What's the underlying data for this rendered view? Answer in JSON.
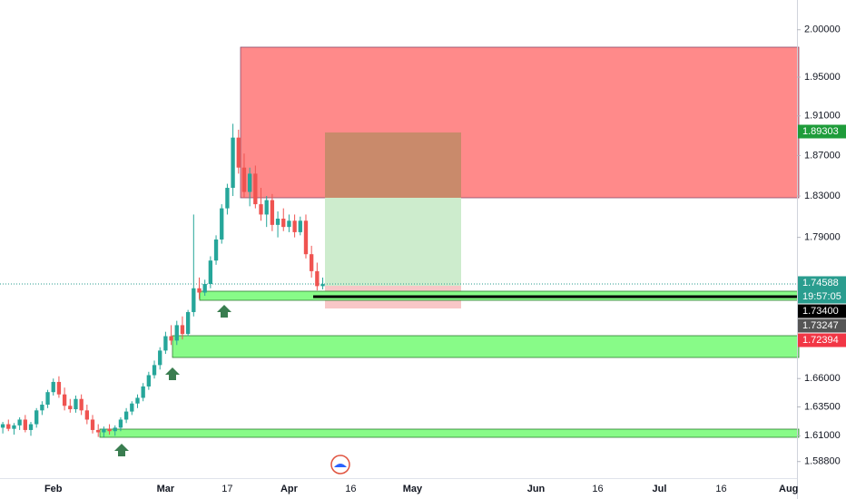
{
  "chart_data": {
    "type": "candlestick",
    "log_scale": true,
    "ylim": [
      1.574,
      2.032
    ],
    "yticks": [
      {
        "value": 2.0,
        "label": "2.00000"
      },
      {
        "value": 1.95,
        "label": "1.95000"
      },
      {
        "value": 1.91,
        "label": "1.91000"
      },
      {
        "value": 1.87,
        "label": "1.87000"
      },
      {
        "value": 1.83,
        "label": "1.83000"
      },
      {
        "value": 1.79,
        "label": "1.79000"
      },
      {
        "value": 1.66,
        "label": "1.66000"
      },
      {
        "value": 1.635,
        "label": "1.63500"
      },
      {
        "value": 1.61,
        "label": "1.61000"
      },
      {
        "value": 1.588,
        "label": "1.58800"
      }
    ],
    "up_color": "#26a69a",
    "down_color": "#ef5350",
    "categories": [
      null,
      null,
      null,
      null,
      null,
      null,
      null,
      null,
      null,
      "Feb",
      null,
      null,
      null,
      null,
      null,
      null,
      null,
      null,
      null,
      null,
      null,
      null,
      null,
      null,
      null,
      null,
      null,
      null,
      null,
      "Mar",
      null,
      null,
      null,
      null,
      null,
      null,
      null,
      null,
      null,
      null,
      "17",
      null,
      null,
      null,
      null,
      null,
      null,
      null,
      null,
      null,
      null,
      "Apr",
      null,
      null,
      null,
      null,
      null,
      null,
      null,
      null,
      null,
      null,
      "16",
      null,
      null,
      null,
      null,
      null,
      null,
      null,
      null,
      null,
      null,
      "May",
      null,
      null,
      null,
      null,
      null,
      null,
      null,
      null,
      null,
      null,
      null,
      null,
      null,
      null,
      null,
      null,
      null,
      null,
      null,
      null,
      null,
      "Jun",
      null,
      null,
      null,
      null,
      null,
      null,
      null,
      null,
      null,
      null,
      "16",
      null,
      null,
      null,
      null,
      null,
      null,
      null,
      null,
      null,
      null,
      "Jul",
      null,
      null,
      null,
      null,
      null,
      null,
      null,
      null,
      null,
      null,
      "16",
      null,
      null,
      null,
      null,
      null,
      null,
      null,
      null,
      null,
      null,
      null,
      "Aug",
      null
    ],
    "open": [
      1.617,
      1.62,
      1.616,
      1.619,
      1.624,
      1.615,
      1.62,
      1.632,
      1.637,
      1.648,
      1.657,
      1.646,
      1.636,
      1.633,
      1.642,
      1.632,
      1.624,
      1.615,
      1.613,
      1.616,
      1.614,
      1.617,
      1.624,
      1.631,
      1.638,
      1.643,
      1.653,
      1.663,
      1.672,
      1.685,
      1.698,
      1.694,
      1.708,
      1.7,
      1.72,
      1.742,
      1.738,
      1.746,
      1.768,
      1.788,
      1.818,
      1.838,
      1.888,
      1.858,
      1.834,
      1.852,
      1.822,
      1.812,
      1.826,
      1.802,
      1.808,
      1.8,
      1.806,
      1.795,
      1.806,
      1.774,
      1.758,
      1.744,
      null,
      null,
      null,
      null,
      null,
      null,
      null,
      null,
      null,
      null,
      null,
      null,
      null,
      null,
      null,
      null,
      null,
      null,
      null,
      null,
      null,
      null,
      null,
      null,
      null,
      null,
      null,
      null,
      null,
      null,
      null,
      null,
      null,
      null,
      null,
      null,
      null,
      null,
      null,
      null,
      null,
      null,
      null,
      null,
      null,
      null,
      null,
      null,
      null,
      null,
      null,
      null,
      null,
      null,
      null,
      null,
      null,
      null,
      null,
      null,
      null,
      null,
      null,
      null,
      null,
      null,
      null,
      null,
      null,
      null,
      null,
      null,
      null,
      null,
      null,
      null,
      null,
      null,
      null,
      null,
      null,
      null,
      null,
      null
    ],
    "high": [
      1.622,
      1.624,
      1.621,
      1.626,
      1.628,
      1.622,
      1.634,
      1.64,
      1.65,
      1.66,
      1.662,
      1.652,
      1.642,
      1.645,
      1.646,
      1.637,
      1.628,
      1.62,
      1.618,
      1.62,
      1.619,
      1.626,
      1.634,
      1.64,
      1.646,
      1.656,
      1.666,
      1.676,
      1.688,
      1.702,
      1.708,
      1.712,
      1.716,
      1.722,
      1.812,
      1.752,
      1.75,
      1.772,
      1.792,
      1.822,
      1.842,
      1.902,
      1.896,
      1.872,
      1.858,
      1.86,
      1.838,
      1.83,
      1.832,
      1.815,
      1.818,
      1.812,
      1.812,
      1.81,
      1.812,
      1.782,
      1.766,
      1.752,
      null,
      null,
      null,
      null,
      null,
      null,
      null,
      null,
      null,
      null,
      null,
      null,
      null,
      null,
      null,
      null,
      null,
      null,
      null,
      null,
      null,
      null,
      null,
      null,
      null,
      null,
      null,
      null,
      null,
      null,
      null,
      null,
      null,
      null,
      null,
      null,
      null,
      null,
      null,
      null,
      null,
      null,
      null,
      null,
      null,
      null,
      null,
      null,
      null,
      null,
      null,
      null,
      null,
      null,
      null,
      null,
      null,
      null,
      null,
      null,
      null,
      null,
      null,
      null,
      null,
      null,
      null,
      null,
      null,
      null,
      null,
      null,
      null,
      null,
      null,
      null,
      null,
      null,
      null,
      null,
      null,
      null,
      null,
      null
    ],
    "low": [
      1.612,
      1.614,
      1.611,
      1.615,
      1.613,
      1.61,
      1.617,
      1.628,
      1.634,
      1.645,
      1.643,
      1.632,
      1.63,
      1.63,
      1.628,
      1.62,
      1.612,
      1.609,
      1.609,
      1.611,
      1.61,
      1.614,
      1.621,
      1.628,
      1.634,
      1.64,
      1.65,
      1.66,
      1.668,
      1.682,
      1.69,
      1.69,
      1.695,
      1.698,
      1.716,
      1.732,
      1.735,
      1.742,
      1.764,
      1.784,
      1.812,
      1.83,
      1.852,
      1.828,
      1.82,
      1.818,
      1.806,
      1.8,
      1.796,
      1.79,
      1.796,
      1.795,
      1.79,
      1.792,
      1.77,
      1.752,
      1.74,
      1.741,
      null,
      null,
      null,
      null,
      null,
      null,
      null,
      null,
      null,
      null,
      null,
      null,
      null,
      null,
      null,
      null,
      null,
      null,
      null,
      null,
      null,
      null,
      null,
      null,
      null,
      null,
      null,
      null,
      null,
      null,
      null,
      null,
      null,
      null,
      null,
      null,
      null,
      null,
      null,
      null,
      null,
      null,
      null,
      null,
      null,
      null,
      null,
      null,
      null,
      null,
      null,
      null,
      null,
      null,
      null,
      null,
      null,
      null,
      null,
      null,
      null,
      null,
      null,
      null,
      null,
      null,
      null,
      null,
      null,
      null,
      null,
      null,
      null,
      null,
      null,
      null,
      null,
      null,
      null,
      null,
      null,
      null,
      null,
      null
    ],
    "close": [
      1.62,
      1.616,
      1.619,
      1.624,
      1.615,
      1.62,
      1.632,
      1.637,
      1.648,
      1.657,
      1.646,
      1.636,
      1.633,
      1.642,
      1.632,
      1.624,
      1.615,
      1.613,
      1.616,
      1.614,
      1.617,
      1.624,
      1.631,
      1.638,
      1.643,
      1.653,
      1.663,
      1.672,
      1.685,
      1.698,
      1.694,
      1.708,
      1.7,
      1.72,
      1.742,
      1.738,
      1.746,
      1.768,
      1.788,
      1.818,
      1.838,
      1.888,
      1.858,
      1.834,
      1.852,
      1.822,
      1.812,
      1.826,
      1.802,
      1.808,
      1.8,
      1.806,
      1.795,
      1.806,
      1.774,
      1.758,
      1.744,
      1.74588,
      null,
      null,
      null,
      null,
      null,
      null,
      null,
      null,
      null,
      null,
      null,
      null,
      null,
      null,
      null,
      null,
      null,
      null,
      null,
      null,
      null,
      null,
      null,
      null,
      null,
      null,
      null,
      null,
      null,
      null,
      null,
      null,
      null,
      null,
      null,
      null,
      null,
      null,
      null,
      null,
      null,
      null,
      null,
      null,
      null,
      null,
      null,
      null,
      null,
      null,
      null,
      null,
      null,
      null,
      null,
      null,
      null,
      null,
      null,
      null,
      null,
      null,
      null,
      null,
      null,
      null,
      null,
      null,
      null,
      null,
      null,
      null,
      null,
      null,
      null,
      null,
      null,
      null,
      null,
      null,
      null,
      null,
      null,
      null
    ],
    "price_labels": [
      {
        "text": "1.89303",
        "color": "#1e9c3a"
      },
      {
        "text": "1.74588",
        "color": "#2a9d8f"
      },
      {
        "text": "19:57:05",
        "color": "#2a9d8f"
      },
      {
        "text": "1.73400",
        "color": "#000000"
      },
      {
        "text": "1.73247",
        "color": "#555555"
      },
      {
        "text": "1.72394",
        "color": "#f23645"
      }
    ]
  }
}
